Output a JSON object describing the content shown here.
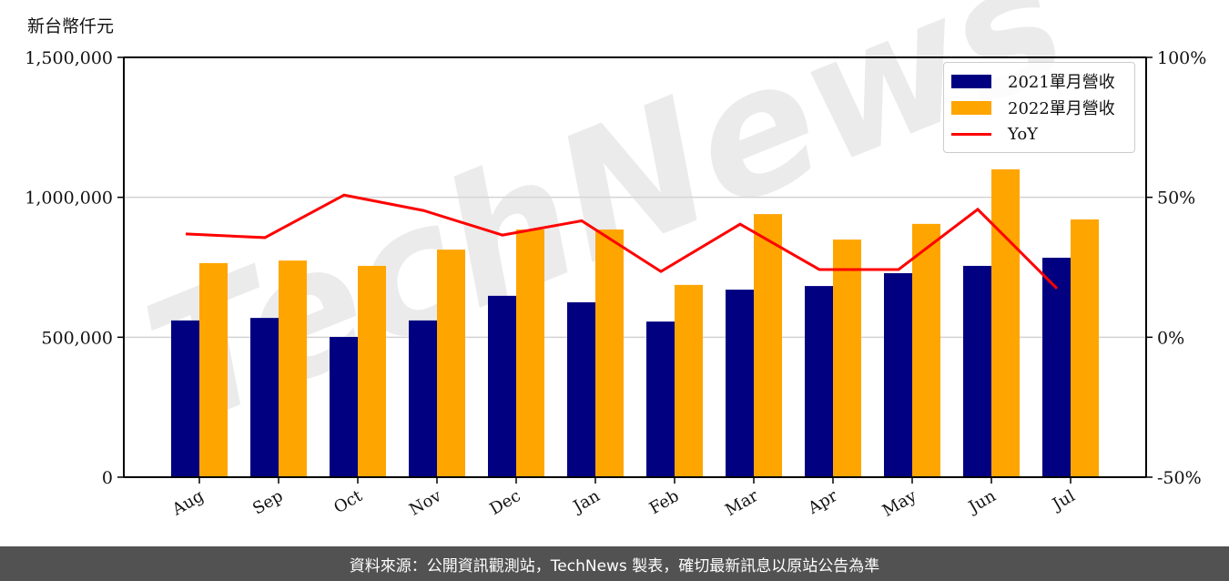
{
  "unit_label": "新台幣仟元",
  "footer": "資料來源：公開資訊觀測站，TechNews 製表，確切最新訊息以原站公告為準",
  "watermark": "TechNews",
  "colors": {
    "bar_2021": "#000080",
    "bar_2022": "#FFA500",
    "yoy_line": "#FF0000",
    "grid": "#d3d3d3",
    "footer_bg": "#525252"
  },
  "legend": {
    "items": [
      {
        "label": "2021單月營收",
        "kind": "bar",
        "color": "#000080"
      },
      {
        "label": "2022單月營收",
        "kind": "bar",
        "color": "#FFA500"
      },
      {
        "label": "YoY",
        "kind": "line",
        "color": "#FF0000"
      }
    ]
  },
  "chart_data": {
    "type": "bar",
    "title": "",
    "xlabel": "",
    "ylabel": "新台幣仟元",
    "y2label": "",
    "categories": [
      "Aug",
      "Sep",
      "Oct",
      "Nov",
      "Dec",
      "Jan",
      "Feb",
      "Mar",
      "Apr",
      "May",
      "Jun",
      "Jul"
    ],
    "series": [
      {
        "name": "2021單月營收",
        "type": "bar",
        "axis": "left",
        "color": "#000080",
        "values": [
          560000,
          569000,
          501000,
          560000,
          648000,
          625000,
          556000,
          670000,
          683000,
          729000,
          755000,
          784000
        ]
      },
      {
        "name": "2022單月營收",
        "type": "bar",
        "axis": "left",
        "color": "#FFA500",
        "values": [
          765000,
          774000,
          755000,
          813000,
          885000,
          885000,
          687000,
          940000,
          849000,
          905000,
          1100000,
          921000
        ]
      },
      {
        "name": "YoY",
        "type": "line",
        "axis": "right",
        "color": "#FF0000",
        "values": [
          36.9,
          35.6,
          50.8,
          45.3,
          36.5,
          41.6,
          23.5,
          40.4,
          24.2,
          24.2,
          45.7,
          17.4
        ]
      }
    ],
    "ylim": [
      0,
      1500000
    ],
    "y2lim": [
      -50,
      100
    ],
    "yticks": [
      0,
      500000,
      1000000,
      1500000
    ],
    "ytick_labels": [
      "0",
      "500,000",
      "1,000,000",
      "1,500,000"
    ],
    "y2ticks": [
      -50,
      0,
      50,
      100
    ],
    "y2tick_labels": [
      "-50%",
      "0%",
      "50%",
      "100%"
    ],
    "grid": "horizontal",
    "legend_position": "upper right"
  }
}
